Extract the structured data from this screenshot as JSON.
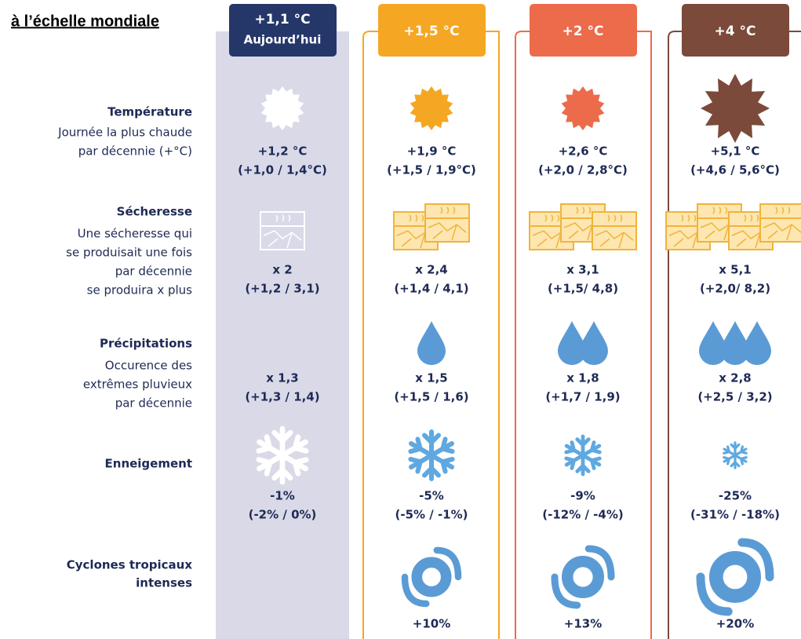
{
  "title": "à l’échelle mondiale",
  "columns": [
    {
      "label": "+1,1 °C",
      "sublabel": "Aujourd’hui"
    },
    {
      "label": "+1,5 °C"
    },
    {
      "label": "+2 °C"
    },
    {
      "label": "+4 °C"
    }
  ],
  "rows": [
    {
      "title": [
        "Température"
      ],
      "description": [
        "Journée la plus chaude",
        "par décennie (+°C)"
      ],
      "values": [
        [
          "+1,2 °C",
          "(+1,0 / 1,4°C)"
        ],
        [
          "+1,9 °C",
          "(+1,5 / 1,9°C)"
        ],
        [
          "+2,6 °C",
          "(+2,0 / 2,8°C)"
        ],
        [
          "+5,1 °C",
          "(+4,6 / 5,6°C)"
        ]
      ]
    },
    {
      "title": [
        "Sécheresse"
      ],
      "description": [
        "Une sécheresse qui",
        "se produisait une fois",
        "par décennie",
        "se produira x plus"
      ],
      "values": [
        [
          "x 2",
          "(+1,2 / 3,1)"
        ],
        [
          "x 2,4",
          "(+1,4 / 4,1)"
        ],
        [
          "x 3,1",
          "(+1,5/ 4,8)"
        ],
        [
          "x 5,1",
          "(+2,0/ 8,2)"
        ]
      ]
    },
    {
      "title": [
        "Précipitations"
      ],
      "description": [
        "Occurence des",
        "extrêmes pluvieux",
        "par décennie"
      ],
      "values": [
        [
          "x 1,3",
          "(+1,3 / 1,4)"
        ],
        [
          "x 1,5",
          "(+1,5 / 1,6)"
        ],
        [
          "x 1,8",
          "(+1,7 / 1,9)"
        ],
        [
          "x 2,8",
          "(+2,5 / 3,2)"
        ]
      ]
    },
    {
      "title": [
        "Enneigement"
      ],
      "description": [],
      "values": [
        [
          "-1%",
          "(-2% / 0%)"
        ],
        [
          "-5%",
          "(-5% / -1%)"
        ],
        [
          "-9%",
          "(-12% / -4%)"
        ],
        [
          "-25%",
          "(-31% / -18%)"
        ]
      ]
    },
    {
      "title": [
        "Cyclones tropicaux",
        "intenses"
      ],
      "description": [],
      "values": [
        null,
        [
          "+10%"
        ],
        [
          "+13%"
        ],
        [
          "+20%"
        ]
      ]
    }
  ]
}
